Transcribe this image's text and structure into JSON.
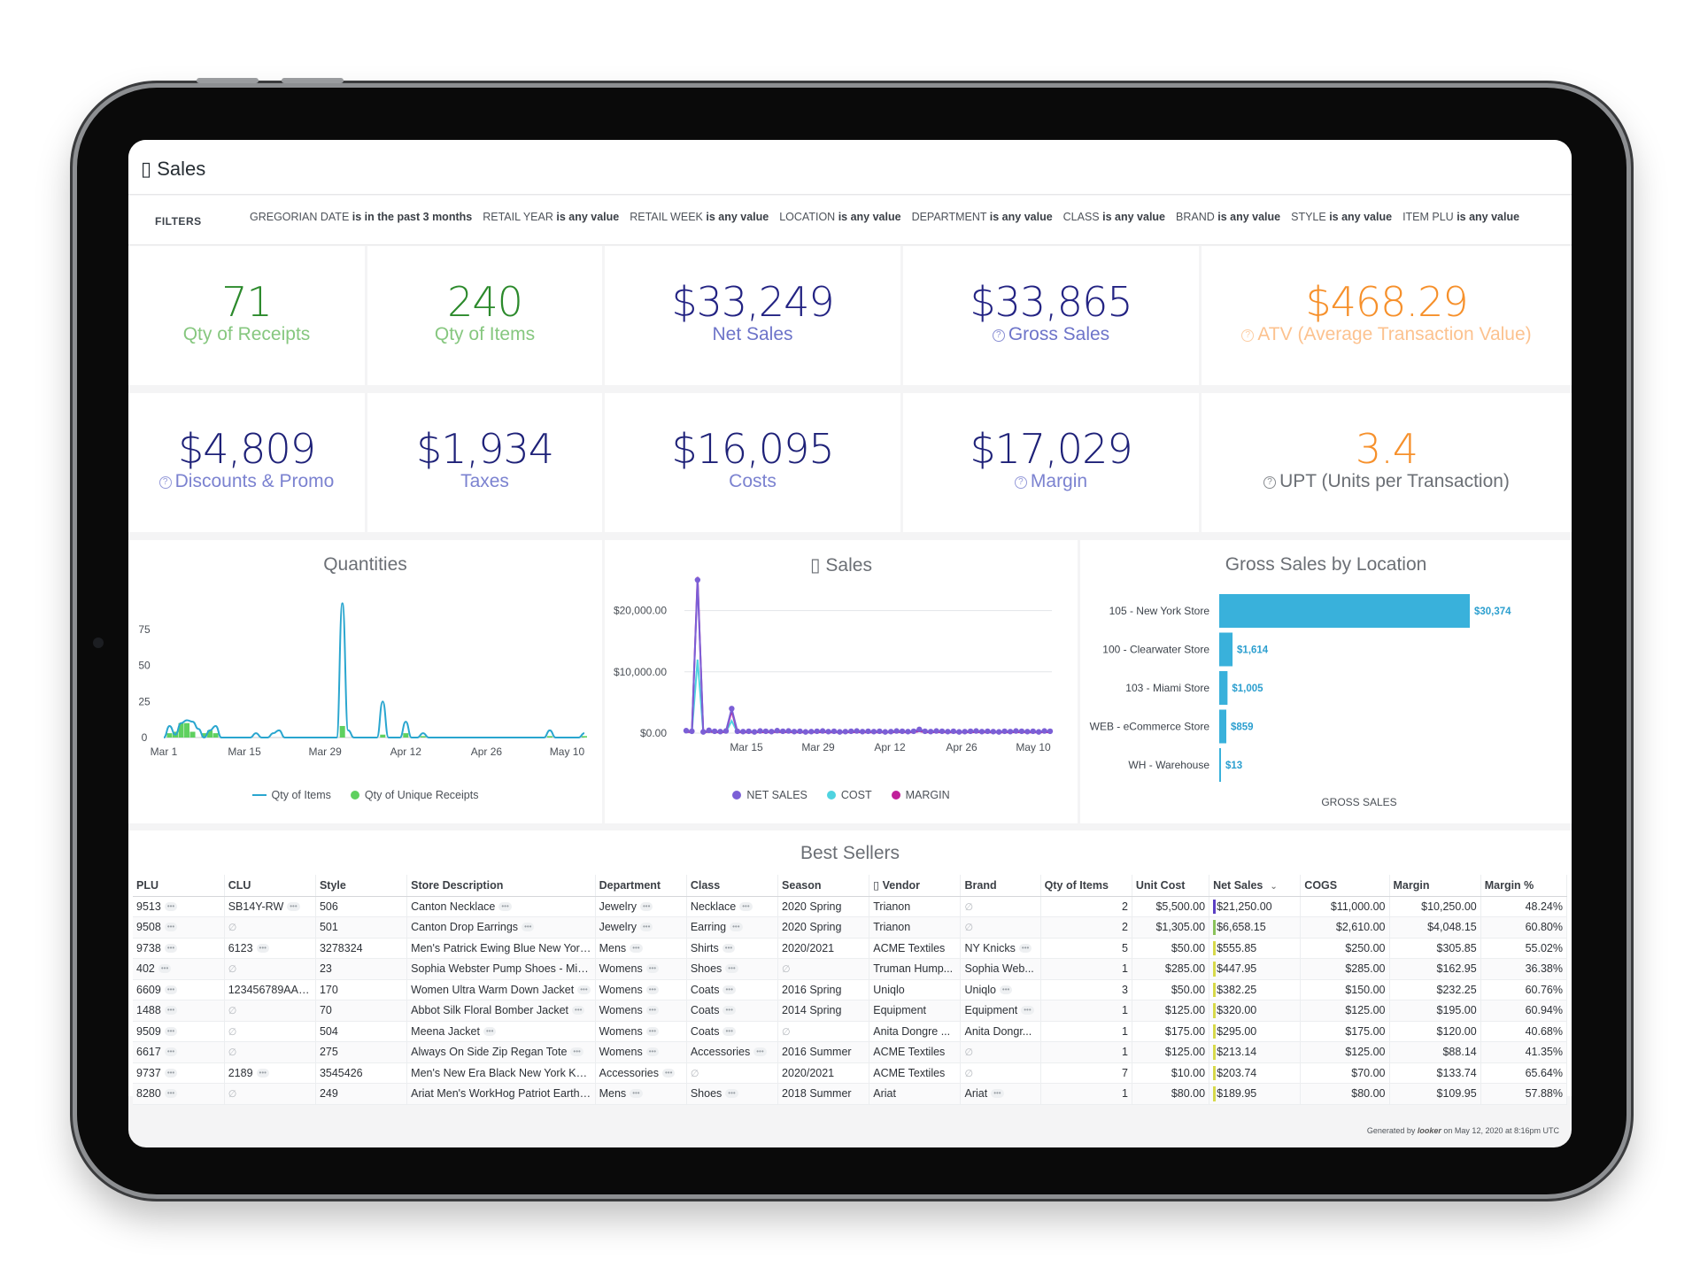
{
  "header": {
    "title": "▯ Sales"
  },
  "filters": {
    "label": "FILTERS",
    "chips": [
      {
        "name": "GREGORIAN DATE",
        "value": "is in the past 3 months"
      },
      {
        "name": "RETAIL YEAR",
        "value": "is any value"
      },
      {
        "name": "RETAIL WEEK",
        "value": "is any value"
      },
      {
        "name": "LOCATION",
        "value": "is any value"
      },
      {
        "name": "DEPARTMENT",
        "value": "is any value"
      },
      {
        "name": "CLASS",
        "value": "is any value"
      },
      {
        "name": "BRAND",
        "value": "is any value"
      },
      {
        "name": "STYLE",
        "value": "is any value"
      },
      {
        "name": "ITEM PLU",
        "value": "is any value"
      }
    ]
  },
  "kpis": {
    "receipts": {
      "value": "71",
      "label": "Qty of Receipts"
    },
    "items": {
      "value": "240",
      "label": "Qty of Items"
    },
    "net_sales": {
      "value": "$33,249",
      "label": "Net Sales"
    },
    "gross_sales": {
      "value": "$33,865",
      "label": "Gross Sales"
    },
    "atv": {
      "value": "$468.29",
      "label": "ATV (Average Transaction Value)"
    },
    "discounts": {
      "value": "$4,809",
      "label": "Discounts & Promo"
    },
    "taxes": {
      "value": "$1,934",
      "label": "Taxes"
    },
    "costs": {
      "value": "$16,095",
      "label": "Costs"
    },
    "margin": {
      "value": "$17,029",
      "label": "Margin"
    },
    "upt": {
      "value": "3.4",
      "label": "UPT (Units per Transaction)"
    }
  },
  "colors": {
    "green_value": "#2c8a2c",
    "navy_value": "#232383",
    "orange_value": "#f6902b",
    "series_items": "#2aa6cf",
    "series_receipts": "#5fd05f",
    "series_net_sales": "#7b5fd6",
    "series_cost": "#4fd3e0",
    "series_margin": "#c0209a",
    "location_bar": "#39b1db"
  },
  "icons": [
    "help-circle-icon",
    "sort-down-icon",
    "more-dots-icon",
    "null-icon",
    "looker-logo"
  ],
  "quantities_chart": {
    "title": "Quantities",
    "legend": [
      "Qty of Items",
      "Qty of Unique Receipts"
    ]
  },
  "sales_chart": {
    "title": "▯ Sales",
    "legend": [
      "NET SALES",
      "COST",
      "MARGIN"
    ]
  },
  "location_chart": {
    "title": "Gross Sales by Location",
    "xlabel": "GROSS SALES"
  },
  "chart_data": [
    {
      "type": "line",
      "title": "Quantities",
      "x_ticks": [
        "Mar 1",
        "Mar 15",
        "Mar 29",
        "Apr 12",
        "Apr 26",
        "May 10"
      ],
      "y_ticks": [
        0,
        25,
        50,
        75
      ],
      "ylim": [
        0,
        100
      ],
      "xlim_days": [
        0,
        73
      ],
      "series": [
        {
          "name": "Qty of Items",
          "type": "line",
          "x": [
            0,
            1,
            2,
            3,
            4,
            5,
            6,
            7,
            8,
            9,
            10,
            11,
            12,
            13,
            14,
            15,
            16,
            17,
            18,
            19,
            20,
            21,
            22,
            23,
            24,
            25,
            26,
            27,
            28,
            29,
            30,
            31,
            32,
            33,
            34,
            35,
            36,
            37,
            38,
            39,
            40,
            41,
            42,
            43,
            44,
            45,
            46,
            47,
            48,
            49,
            50,
            51,
            52,
            53,
            54,
            55,
            56,
            57,
            58,
            59,
            60,
            61,
            62,
            63,
            64,
            65,
            66,
            67,
            68,
            69,
            70,
            71,
            72,
            73
          ],
          "y": [
            0,
            8,
            2,
            10,
            12,
            11,
            6,
            0,
            5,
            8,
            0,
            0,
            0,
            0,
            0,
            0,
            3,
            0,
            0,
            3,
            5,
            0,
            0,
            0,
            0,
            0,
            0,
            0,
            0,
            0,
            0,
            93,
            5,
            0,
            0,
            0,
            0,
            0,
            25,
            0,
            0,
            0,
            11,
            0,
            0,
            3,
            0,
            0,
            0,
            0,
            0,
            0,
            0,
            0,
            0,
            0,
            0,
            0,
            0,
            0,
            0,
            0,
            0,
            0,
            0,
            0,
            0,
            5,
            0,
            0,
            0,
            0,
            0,
            3
          ]
        },
        {
          "name": "Qty of Unique Receipts",
          "type": "bar",
          "x": [
            1,
            2,
            3,
            4,
            5,
            7,
            8,
            9,
            31,
            38,
            42,
            45,
            67,
            73
          ],
          "y": [
            3,
            4,
            10,
            10,
            4,
            3,
            5,
            3,
            8,
            2,
            3,
            1,
            1,
            1
          ]
        }
      ]
    },
    {
      "type": "line",
      "title": "▯ Sales",
      "x_ticks": [
        "Mar 15",
        "Mar 29",
        "Apr 12",
        "Apr 26",
        "May 10"
      ],
      "y_ticks": [
        "$0.00",
        "$10,000.00",
        "$20,000.00"
      ],
      "ylim": [
        0,
        25000
      ],
      "series": [
        {
          "name": "NET SALES",
          "y": [
            400,
            300,
            25000,
            200,
            450,
            300,
            250,
            350,
            4000,
            300,
            250,
            300,
            200,
            350,
            300,
            250,
            400,
            300,
            350,
            250,
            300,
            200,
            250,
            300,
            350,
            250,
            300,
            200,
            250,
            300,
            350,
            250,
            300,
            250,
            300,
            200,
            250,
            350,
            300,
            250,
            300,
            600,
            300,
            250,
            350,
            300,
            250,
            300,
            200,
            250,
            300,
            350,
            250,
            300,
            250,
            200,
            300,
            250,
            350,
            300,
            250,
            300,
            200,
            350,
            300
          ]
        },
        {
          "name": "COST",
          "y": [
            200,
            150,
            12000,
            100,
            200,
            150,
            120,
            180,
            2000,
            150,
            120,
            150,
            100,
            180,
            150,
            120,
            200,
            150,
            180,
            120,
            150,
            100,
            120,
            150,
            180,
            120,
            150,
            100,
            120,
            150,
            180,
            120,
            150,
            120,
            150,
            100,
            120,
            180,
            150,
            120,
            150,
            300,
            150,
            120,
            180,
            150,
            120,
            150,
            100,
            120,
            150,
            180,
            120,
            150,
            120,
            100,
            150,
            120,
            180,
            150,
            120,
            150,
            100,
            180,
            150
          ]
        },
        {
          "name": "MARGIN",
          "y": [
            200,
            150,
            25500,
            100,
            250,
            150,
            130,
            170,
            3600,
            150,
            130,
            150,
            100,
            170,
            150,
            130,
            200,
            150,
            170,
            130,
            150,
            100,
            130,
            150,
            170,
            130,
            150,
            100,
            130,
            150,
            170,
            130,
            150,
            130,
            150,
            100,
            130,
            170,
            150,
            130,
            150,
            300,
            150,
            130,
            170,
            150,
            130,
            150,
            100,
            130,
            150,
            170,
            130,
            150,
            130,
            100,
            150,
            130,
            170,
            150,
            130,
            150,
            100,
            170,
            150
          ]
        }
      ]
    },
    {
      "type": "bar",
      "title": "Gross Sales by Location",
      "xlabel": "GROSS SALES",
      "categories": [
        "105 - New York Store",
        "100 - Clearwater Store",
        "103 - Miami Store",
        "WEB - eCommerce Store",
        "WH - Warehouse"
      ],
      "values": [
        30374,
        1614,
        1005,
        859,
        13
      ],
      "value_labels": [
        "$30,374",
        "$1,614",
        "$1,005",
        "$859",
        "$13"
      ]
    }
  ],
  "best_sellers": {
    "title": "Best Sellers",
    "columns": [
      "PLU",
      "CLU",
      "Style",
      "Store Description",
      "Department",
      "Class",
      "Season",
      "▯ Vendor",
      "Brand",
      "Qty of Items",
      "Unit Cost",
      "Net Sales",
      "COGS",
      "Margin",
      "Margin %"
    ],
    "rows": [
      [
        "9513",
        "SB14Y-RW",
        "506",
        "Canton Necklace",
        "Jewelry",
        "Necklace",
        "2020 Spring",
        "Trianon",
        "∅",
        "2",
        "$5,500.00",
        "$21,250.00",
        "$11,000.00",
        "$10,250.00",
        "48.24%"
      ],
      [
        "9508",
        "∅",
        "501",
        "Canton Drop Earrings",
        "Jewelry",
        "Earring",
        "2020 Spring",
        "Trianon",
        "∅",
        "2",
        "$1,305.00",
        "$6,658.15",
        "$2,610.00",
        "$4,048.15",
        "60.80%"
      ],
      [
        "9738",
        "6123",
        "3278324",
        "Men's Patrick Ewing Blue New York...",
        "Mens",
        "Shirts",
        "2020/2021",
        "ACME Textiles",
        "NY Knicks",
        "5",
        "$50.00",
        "$555.85",
        "$250.00",
        "$305.85",
        "55.02%"
      ],
      [
        "402",
        "∅",
        "23",
        "Sophia Webster Pump Shoes - Mix...",
        "Womens",
        "Shoes",
        "∅",
        "Truman Hump...",
        "Sophia Web...",
        "1",
        "$285.00",
        "$447.95",
        "$285.00",
        "$162.95",
        "36.38%"
      ],
      [
        "6609",
        "123456789AA...",
        "170",
        "Women Ultra Warm Down Jacket",
        "Womens",
        "Coats",
        "2016 Spring",
        "Uniqlo",
        "Uniqlo",
        "3",
        "$50.00",
        "$382.25",
        "$150.00",
        "$232.25",
        "60.76%"
      ],
      [
        "1488",
        "∅",
        "70",
        "Abbot Silk Floral Bomber Jacket",
        "Womens",
        "Coats",
        "2014 Spring",
        "Equipment",
        "Equipment",
        "1",
        "$125.00",
        "$320.00",
        "$125.00",
        "$195.00",
        "60.94%"
      ],
      [
        "9509",
        "∅",
        "504",
        "Meena Jacket",
        "Womens",
        "Coats",
        "∅",
        "Anita Dongre ...",
        "Anita Dongr...",
        "1",
        "$175.00",
        "$295.00",
        "$175.00",
        "$120.00",
        "40.68%"
      ],
      [
        "6617",
        "∅",
        "275",
        "Always On Side Zip Regan Tote",
        "Womens",
        "Accessories",
        "2016 Summer",
        "ACME Textiles",
        "∅",
        "1",
        "$125.00",
        "$213.14",
        "$125.00",
        "$88.14",
        "41.35%"
      ],
      [
        "9737",
        "2189",
        "3545426",
        "Men's New Era Black New York Kni...",
        "Accessories",
        "∅",
        "2020/2021",
        "ACME Textiles",
        "∅",
        "7",
        "$10.00",
        "$203.74",
        "$70.00",
        "$133.74",
        "65.64%"
      ],
      [
        "8280",
        "∅",
        "249",
        "Ariat Men's WorkHog Patriot Earth...",
        "Mens",
        "Shoes",
        "2018 Summer",
        "Ariat",
        "Ariat",
        "1",
        "$80.00",
        "$189.95",
        "$80.00",
        "$109.95",
        "57.88%"
      ]
    ],
    "net_sales_values": [
      21250,
      6658.15,
      555.85,
      447.95,
      382.25,
      320,
      295,
      213.14,
      203.74,
      189.95
    ]
  },
  "footer": {
    "prefix": "Generated by",
    "brand": "looker",
    "suffix": "on May 12, 2020 at 8:16pm UTC"
  }
}
